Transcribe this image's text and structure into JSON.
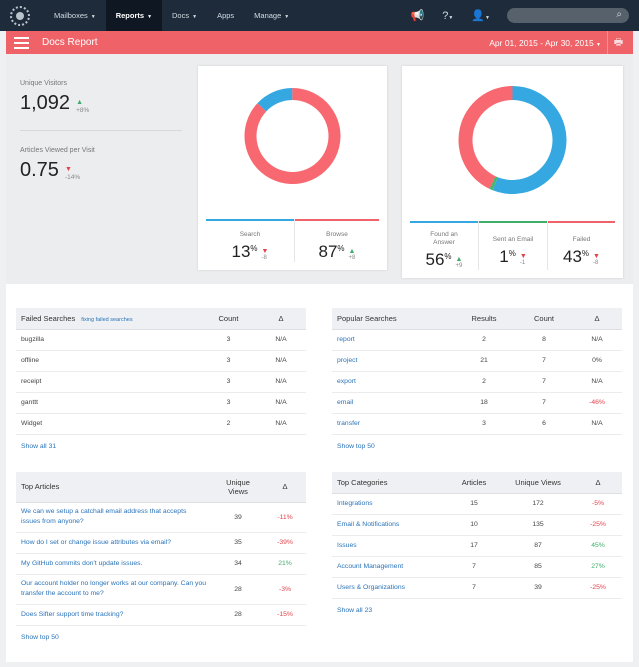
{
  "nav": {
    "items": [
      {
        "label": "Mailboxes",
        "caret": true,
        "active": false
      },
      {
        "label": "Reports",
        "caret": true,
        "active": true
      },
      {
        "label": "Docs",
        "caret": true,
        "active": false
      },
      {
        "label": "Apps",
        "caret": false,
        "active": false
      },
      {
        "label": "Manage",
        "caret": true,
        "active": false
      }
    ],
    "search_placeholder": ""
  },
  "header": {
    "title": "Docs Report",
    "date_range": "Apr 01, 2015 - Apr 30, 2015"
  },
  "metrics": {
    "unique_visitors": {
      "label": "Unique Visitors",
      "value": "1,092",
      "delta": "+8%"
    },
    "articles_per_visit": {
      "label": "Articles Viewed per Visit",
      "value": "0.75",
      "delta": "-14%"
    }
  },
  "colors": {
    "red": "#ef6268",
    "blue": "#36a8e1",
    "green": "#3fae6c",
    "navy": "#1d2b3a"
  },
  "chart_data": [
    {
      "type": "pie",
      "categories": [
        "Search",
        "Browse"
      ],
      "values": [
        13,
        87
      ],
      "colors": [
        "#36a8e1",
        "#f86871"
      ]
    },
    {
      "type": "pie",
      "categories": [
        "Found an Answer",
        "Sent an Email",
        "Failed"
      ],
      "values": [
        56,
        1,
        43
      ],
      "colors": [
        "#36a8e1",
        "#4bb56b",
        "#f86871"
      ]
    }
  ],
  "search_stats": {
    "search": {
      "label": "Search",
      "value": "13",
      "delta": "-8"
    },
    "browse": {
      "label": "Browse",
      "value": "87",
      "delta": "+8"
    }
  },
  "outcome_stats": {
    "found": {
      "label": "Found an Answer",
      "value": "56",
      "delta": "+9"
    },
    "email": {
      "label": "Sent an Email",
      "value": "1",
      "delta": "-1"
    },
    "failed": {
      "label": "Failed",
      "value": "43",
      "delta": "-8"
    }
  },
  "failed_searches": {
    "title": "Failed Searches",
    "fix_link": "fixing failed searches",
    "col_count": "Count",
    "col_delta": "Δ",
    "rows": [
      {
        "term": "bugzilla",
        "count": "3",
        "delta": "N/A"
      },
      {
        "term": "offline",
        "count": "3",
        "delta": "N/A"
      },
      {
        "term": "receipt",
        "count": "3",
        "delta": "N/A"
      },
      {
        "term": "ganttt",
        "count": "3",
        "delta": "N/A"
      },
      {
        "term": "Widget",
        "count": "2",
        "delta": "N/A"
      }
    ],
    "show_all": "Show all 31"
  },
  "popular_searches": {
    "title": "Popular Searches",
    "col_results": "Results",
    "col_count": "Count",
    "col_delta": "Δ",
    "rows": [
      {
        "term": "report",
        "results": "2",
        "count": "8",
        "delta": "N/A"
      },
      {
        "term": "project",
        "results": "21",
        "count": "7",
        "delta": "0%"
      },
      {
        "term": "export",
        "results": "2",
        "count": "7",
        "delta": "N/A"
      },
      {
        "term": "email",
        "results": "18",
        "count": "7",
        "delta": "-46%"
      },
      {
        "term": "transfer",
        "results": "3",
        "count": "6",
        "delta": "N/A"
      }
    ],
    "show_top": "Show top 50"
  },
  "top_articles": {
    "title": "Top Articles",
    "col_views_line1": "Unique",
    "col_views_line2": "Views",
    "col_delta": "Δ",
    "rows": [
      {
        "title": "We can we setup a catchall email address that accepts issues from anyone?",
        "views": "39",
        "delta": "-11%"
      },
      {
        "title": "How do I set or change issue attributes via email?",
        "views": "35",
        "delta": "-39%"
      },
      {
        "title": "My GitHub commits don't update issues.",
        "views": "34",
        "delta": "21%"
      },
      {
        "title": "Our account holder no longer works at our company. Can you transfer the account to me?",
        "views": "28",
        "delta": "-3%"
      },
      {
        "title": "Does Sifter support time tracking?",
        "views": "28",
        "delta": "-15%"
      }
    ],
    "show_top": "Show top 50"
  },
  "top_categories": {
    "title": "Top Categories",
    "col_articles": "Articles",
    "col_views": "Unique Views",
    "col_delta": "Δ",
    "rows": [
      {
        "name": "Integrations",
        "articles": "15",
        "views": "172",
        "delta": "-5%"
      },
      {
        "name": "Email & Notifications",
        "articles": "10",
        "views": "135",
        "delta": "-25%"
      },
      {
        "name": "Issues",
        "articles": "17",
        "views": "87",
        "delta": "45%"
      },
      {
        "name": "Account Management",
        "articles": "7",
        "views": "85",
        "delta": "27%"
      },
      {
        "name": "Users & Organizations",
        "articles": "7",
        "views": "39",
        "delta": "-25%"
      }
    ],
    "show_all": "Show all 23"
  }
}
